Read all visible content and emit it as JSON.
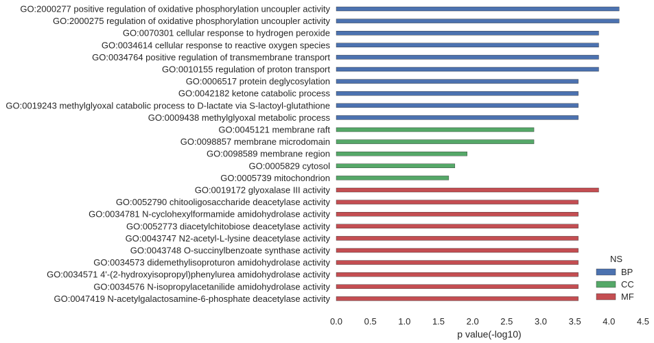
{
  "chart_data": {
    "type": "bar",
    "orientation": "horizontal",
    "categories": [
      "GO:2000277 positive regulation of oxidative phosphorylation uncoupler activity",
      "GO:2000275 regulation of oxidative phosphorylation uncoupler activity",
      "GO:0070301 cellular response to hydrogen peroxide",
      "GO:0034614 cellular response to reactive oxygen species",
      "GO:0034764 positive regulation of transmembrane transport",
      "GO:0010155 regulation of proton transport",
      "GO:0006517 protein deglycosylation",
      "GO:0042182 ketone catabolic process",
      "GO:0019243 methylglyoxal catabolic process to D-lactate via S-lactoyl-glutathione",
      "GO:0009438 methylglyoxal metabolic process",
      "GO:0045121 membrane raft",
      "GO:0098857 membrane microdomain",
      "GO:0098589 membrane region",
      "GO:0005829 cytosol",
      "GO:0005739 mitochondrion",
      "GO:0019172 glyoxalase III activity",
      "GO:0052790 chitooligosaccharide deacetylase activity",
      "GO:0034781 N-cyclohexylformamide amidohydrolase activity",
      "GO:0052773 diacetylchitobiose deacetylase activity",
      "GO:0043747 N2-acetyl-L-lysine deacetylase activity",
      "GO:0043748 O-succinylbenzoate synthase activity",
      "GO:0034573 didemethylisoproturon amidohydrolase activity",
      "GO:0034571 4'-(2-hydroxyisopropyl)phenylurea amidohydrolase activity",
      "GO:0034576 N-isopropylacetanilide amidohydrolase activity",
      "GO:0047419 N-acetylgalactosamine-6-phosphate deacetylase activity"
    ],
    "values": [
      4.15,
      4.15,
      3.85,
      3.85,
      3.85,
      3.85,
      3.55,
      3.55,
      3.55,
      3.55,
      2.9,
      2.9,
      1.92,
      1.74,
      1.65,
      3.85,
      3.55,
      3.55,
      3.55,
      3.55,
      3.55,
      3.55,
      3.55,
      3.55,
      3.55
    ],
    "groups": [
      "BP",
      "BP",
      "BP",
      "BP",
      "BP",
      "BP",
      "BP",
      "BP",
      "BP",
      "BP",
      "CC",
      "CC",
      "CC",
      "CC",
      "CC",
      "MF",
      "MF",
      "MF",
      "MF",
      "MF",
      "MF",
      "MF",
      "MF",
      "MF",
      "MF"
    ],
    "xlabel": "p value(-log10)",
    "xlim": [
      0,
      4.5
    ],
    "xticks": [
      "0.0",
      "0.5",
      "1.0",
      "1.5",
      "2.0",
      "2.5",
      "3.0",
      "3.5",
      "4.0",
      "4.5"
    ],
    "grid": false,
    "legend": {
      "title": "NS",
      "placement": "bottom-right",
      "entries": [
        {
          "name": "BP",
          "color": "#4c72b0"
        },
        {
          "name": "CC",
          "color": "#55a868"
        },
        {
          "name": "MF",
          "color": "#c44e52"
        }
      ]
    }
  }
}
